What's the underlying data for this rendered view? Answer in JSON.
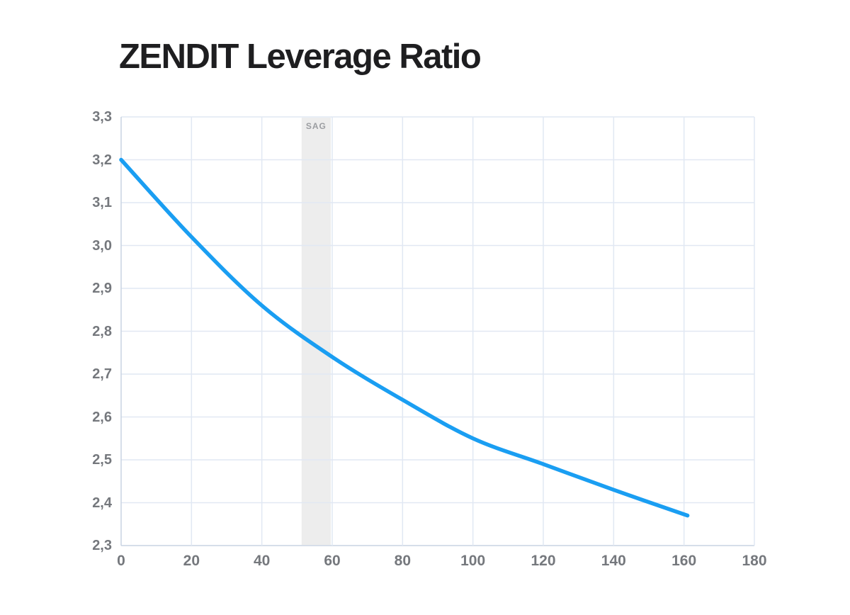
{
  "title": "ZENDIT Leverage Ratio",
  "chart_data": {
    "type": "line",
    "title": "ZENDIT Leverage Ratio",
    "xlabel": "",
    "ylabel": "",
    "xlim": [
      0,
      180
    ],
    "ylim": [
      2.3,
      3.3
    ],
    "grid": true,
    "legend": false,
    "x_ticks": {
      "values": [
        0,
        20,
        40,
        60,
        80,
        100,
        120,
        140,
        160,
        180
      ],
      "labels": [
        "0",
        "20",
        "40",
        "60",
        "80",
        "100",
        "120",
        "140",
        "160",
        "180"
      ]
    },
    "y_ticks": {
      "values": [
        2.3,
        2.4,
        2.5,
        2.6,
        2.7,
        2.8,
        2.9,
        3.0,
        3.1,
        3.2,
        3.3
      ],
      "labels": [
        "2,3",
        "2,4",
        "2,5",
        "2,6",
        "2,7",
        "2,8",
        "2,9",
        "3,0",
        "3,1",
        "3,2",
        "3,3"
      ]
    },
    "series": [
      {
        "name": "Leverage Ratio",
        "points": [
          [
            0,
            3.2
          ],
          [
            20,
            3.02
          ],
          [
            40,
            2.86
          ],
          [
            60,
            2.74
          ],
          [
            80,
            2.64
          ],
          [
            100,
            2.55
          ],
          [
            120,
            2.49
          ],
          [
            140,
            2.43
          ],
          [
            161,
            2.37
          ]
        ]
      }
    ],
    "band": {
      "label": "SAG",
      "x_from": 51.3,
      "x_to": 59.6
    },
    "colors": {
      "line": "#1a9ef2",
      "grid": "#e1e8f3",
      "axis": "#c9d4e2",
      "band_fill": "#ededed",
      "band_label": "#9b9da1",
      "tick_label": "#75787d",
      "title": "#1e1e20"
    }
  }
}
